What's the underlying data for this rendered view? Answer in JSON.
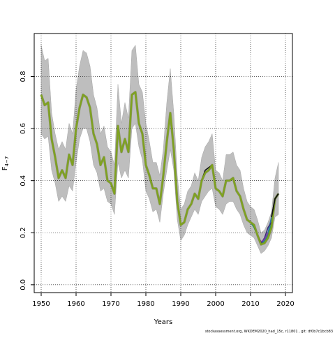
{
  "footnote": "stockassessment.org, WKDEM2020_had_15c, r11801 , git: df0b7c1bcb83",
  "colors": {
    "band": "#bebebe",
    "band_stroke": "#a6a6a6",
    "main_line": "#7fa31e",
    "retro_lines": [
      "#2b6fb0",
      "#2e9e7a",
      "#3a2f7a",
      "#7a3aa6",
      "#111111"
    ],
    "grid": "#000000"
  },
  "chart_data": {
    "type": "line",
    "title": "",
    "xlabel": "Years",
    "ylabel": "F",
    "ylabel_sub": "4−7",
    "xlim": [
      1948,
      2022
    ],
    "ylim": [
      -0.03,
      0.965
    ],
    "x_ticks": [
      1950,
      1960,
      1970,
      1980,
      1990,
      2000,
      2010,
      2020
    ],
    "x_tick_labels": [
      "1950",
      "1960",
      "1970",
      "1980",
      "1990",
      "2000",
      "2010",
      "2020"
    ],
    "y_ticks": [
      0.0,
      0.2,
      0.4,
      0.6,
      0.8
    ],
    "y_tick_labels": [
      "0.0",
      "0.2",
      "0.4",
      "0.6",
      "0.8"
    ],
    "grid": true,
    "band": {
      "x": [
        1950,
        1951,
        1952,
        1953,
        1954,
        1955,
        1956,
        1957,
        1958,
        1959,
        1960,
        1961,
        1962,
        1963,
        1964,
        1965,
        1966,
        1967,
        1968,
        1969,
        1970,
        1971,
        1972,
        1973,
        1974,
        1975,
        1976,
        1977,
        1978,
        1979,
        1980,
        1981,
        1982,
        1983,
        1984,
        1985,
        1986,
        1987,
        1988,
        1989,
        1990,
        1991,
        1992,
        1993,
        1994,
        1995,
        1996,
        1997,
        1998,
        1999,
        2000,
        2001,
        2002,
        2003,
        2004,
        2005,
        2006,
        2007,
        2008,
        2009,
        2010,
        2011,
        2012,
        2013,
        2014,
        2015,
        2016,
        2017,
        2018
      ],
      "lower": [
        0.58,
        0.56,
        0.57,
        0.44,
        0.39,
        0.32,
        0.34,
        0.32,
        0.38,
        0.36,
        0.47,
        0.56,
        0.6,
        0.6,
        0.55,
        0.46,
        0.43,
        0.36,
        0.37,
        0.32,
        0.31,
        0.27,
        0.47,
        0.41,
        0.44,
        0.41,
        0.6,
        0.62,
        0.53,
        0.48,
        0.36,
        0.33,
        0.28,
        0.29,
        0.24,
        0.35,
        0.44,
        0.52,
        0.44,
        0.25,
        0.17,
        0.19,
        0.23,
        0.26,
        0.29,
        0.27,
        0.32,
        0.34,
        0.36,
        0.37,
        0.3,
        0.29,
        0.27,
        0.31,
        0.32,
        0.32,
        0.29,
        0.27,
        0.23,
        0.2,
        0.19,
        0.18,
        0.15,
        0.12,
        0.13,
        0.15,
        0.18,
        0.26,
        0.27
      ],
      "upper": [
        0.92,
        0.86,
        0.87,
        0.66,
        0.58,
        0.52,
        0.55,
        0.52,
        0.62,
        0.58,
        0.75,
        0.84,
        0.9,
        0.89,
        0.84,
        0.73,
        0.68,
        0.58,
        0.61,
        0.53,
        0.51,
        0.46,
        0.77,
        0.62,
        0.7,
        0.64,
        0.9,
        0.92,
        0.77,
        0.74,
        0.62,
        0.55,
        0.47,
        0.47,
        0.42,
        0.52,
        0.7,
        0.83,
        0.66,
        0.42,
        0.29,
        0.31,
        0.36,
        0.38,
        0.43,
        0.4,
        0.49,
        0.53,
        0.55,
        0.58,
        0.44,
        0.43,
        0.4,
        0.5,
        0.5,
        0.51,
        0.46,
        0.44,
        0.37,
        0.32,
        0.3,
        0.29,
        0.25,
        0.2,
        0.21,
        0.24,
        0.28,
        0.41,
        0.47
      ]
    },
    "series": [
      {
        "x": [
          1950,
          1951,
          1952,
          1953,
          1954,
          1955,
          1956,
          1957,
          1958,
          1959,
          1960,
          1961,
          1962,
          1963,
          1964,
          1965,
          1966,
          1967,
          1968,
          1969,
          1970,
          1971,
          1972,
          1973,
          1974,
          1975,
          1976,
          1977,
          1978,
          1979,
          1980,
          1981,
          1982,
          1983,
          1984,
          1985,
          1986,
          1987,
          1988,
          1989,
          1990,
          1991,
          1992,
          1993,
          1994,
          1995,
          1996,
          1997,
          1998,
          1999,
          2000,
          2001,
          2002,
          2003,
          2004,
          2005,
          2006,
          2007,
          2008,
          2009,
          2010,
          2011,
          2012,
          2013,
          2014,
          2015,
          2016,
          2017,
          2018
        ],
        "values": [
          0.73,
          0.69,
          0.7,
          0.56,
          0.49,
          0.41,
          0.44,
          0.41,
          0.5,
          0.46,
          0.6,
          0.68,
          0.73,
          0.72,
          0.68,
          0.58,
          0.54,
          0.46,
          0.49,
          0.4,
          0.39,
          0.35,
          0.61,
          0.51,
          0.56,
          0.51,
          0.73,
          0.74,
          0.62,
          0.58,
          0.46,
          0.42,
          0.37,
          0.37,
          0.31,
          0.42,
          0.55,
          0.66,
          0.52,
          0.32,
          0.23,
          0.24,
          0.29,
          0.31,
          0.35,
          0.33,
          0.4,
          0.43,
          0.44,
          0.46,
          0.37,
          0.36,
          0.34,
          0.4,
          0.4,
          0.41,
          0.36,
          0.34,
          0.29,
          0.25,
          0.24,
          0.23,
          0.19,
          0.155,
          0.16,
          0.18,
          0.22,
          0.33,
          0.35
        ]
      }
    ],
    "retro_tails": [
      {
        "x": [
          2010,
          2011,
          2012,
          2013,
          2014,
          2015,
          2016,
          2017,
          2018
        ],
        "values": [
          0.24,
          0.23,
          0.19,
          0.16,
          0.17,
          0.2,
          0.26,
          0.33,
          0.35
        ]
      },
      {
        "x": [
          2009,
          2010,
          2011,
          2012,
          2013,
          2014,
          2015,
          2016,
          2017
        ],
        "values": [
          0.25,
          0.24,
          0.22,
          0.19,
          0.155,
          0.165,
          0.19,
          0.24,
          0.33
        ]
      },
      {
        "x": [
          2008,
          2009,
          2010,
          2011,
          2012,
          2013,
          2014,
          2015,
          2016
        ],
        "values": [
          0.29,
          0.25,
          0.24,
          0.23,
          0.19,
          0.16,
          0.18,
          0.22,
          0.24
        ]
      },
      {
        "x": [
          2007,
          2008,
          2009,
          2010,
          2011,
          2012,
          2013,
          2014,
          2015
        ],
        "values": [
          0.34,
          0.29,
          0.25,
          0.24,
          0.23,
          0.19,
          0.165,
          0.175,
          0.2
        ]
      },
      {
        "x": [
          1996,
          1997,
          1998,
          1999,
          2000,
          2001,
          2002,
          2003,
          2004,
          2005,
          2006
        ],
        "values": [
          0.4,
          0.44,
          0.45,
          0.46,
          0.37,
          0.36,
          0.34,
          0.4,
          0.4,
          0.41,
          0.36
        ]
      }
    ]
  }
}
